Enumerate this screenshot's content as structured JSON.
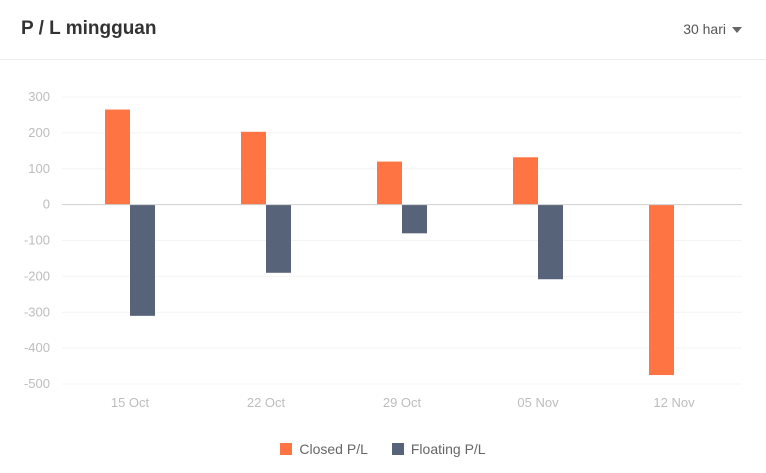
{
  "header": {
    "title": "P / L mingguan",
    "range_label": "30 hari",
    "caret_icon": "caret-down-icon"
  },
  "colors": {
    "closed": "#ff7443",
    "floating": "#576378"
  },
  "chart_data": {
    "type": "bar",
    "categories": [
      "15 Oct",
      "22 Oct",
      "29 Oct",
      "05 Nov",
      "12 Nov"
    ],
    "series": [
      {
        "name": "Closed P/L",
        "values": [
          265,
          203,
          120,
          132,
          -475
        ]
      },
      {
        "name": "Floating P/L",
        "values": [
          -310,
          -190,
          -80,
          -208,
          0
        ]
      }
    ],
    "yticks": [
      300,
      200,
      100,
      0,
      -100,
      -200,
      -300,
      -400,
      -500
    ],
    "ylim": [
      -500,
      300
    ],
    "grid": true,
    "legend": "bottom-center"
  }
}
